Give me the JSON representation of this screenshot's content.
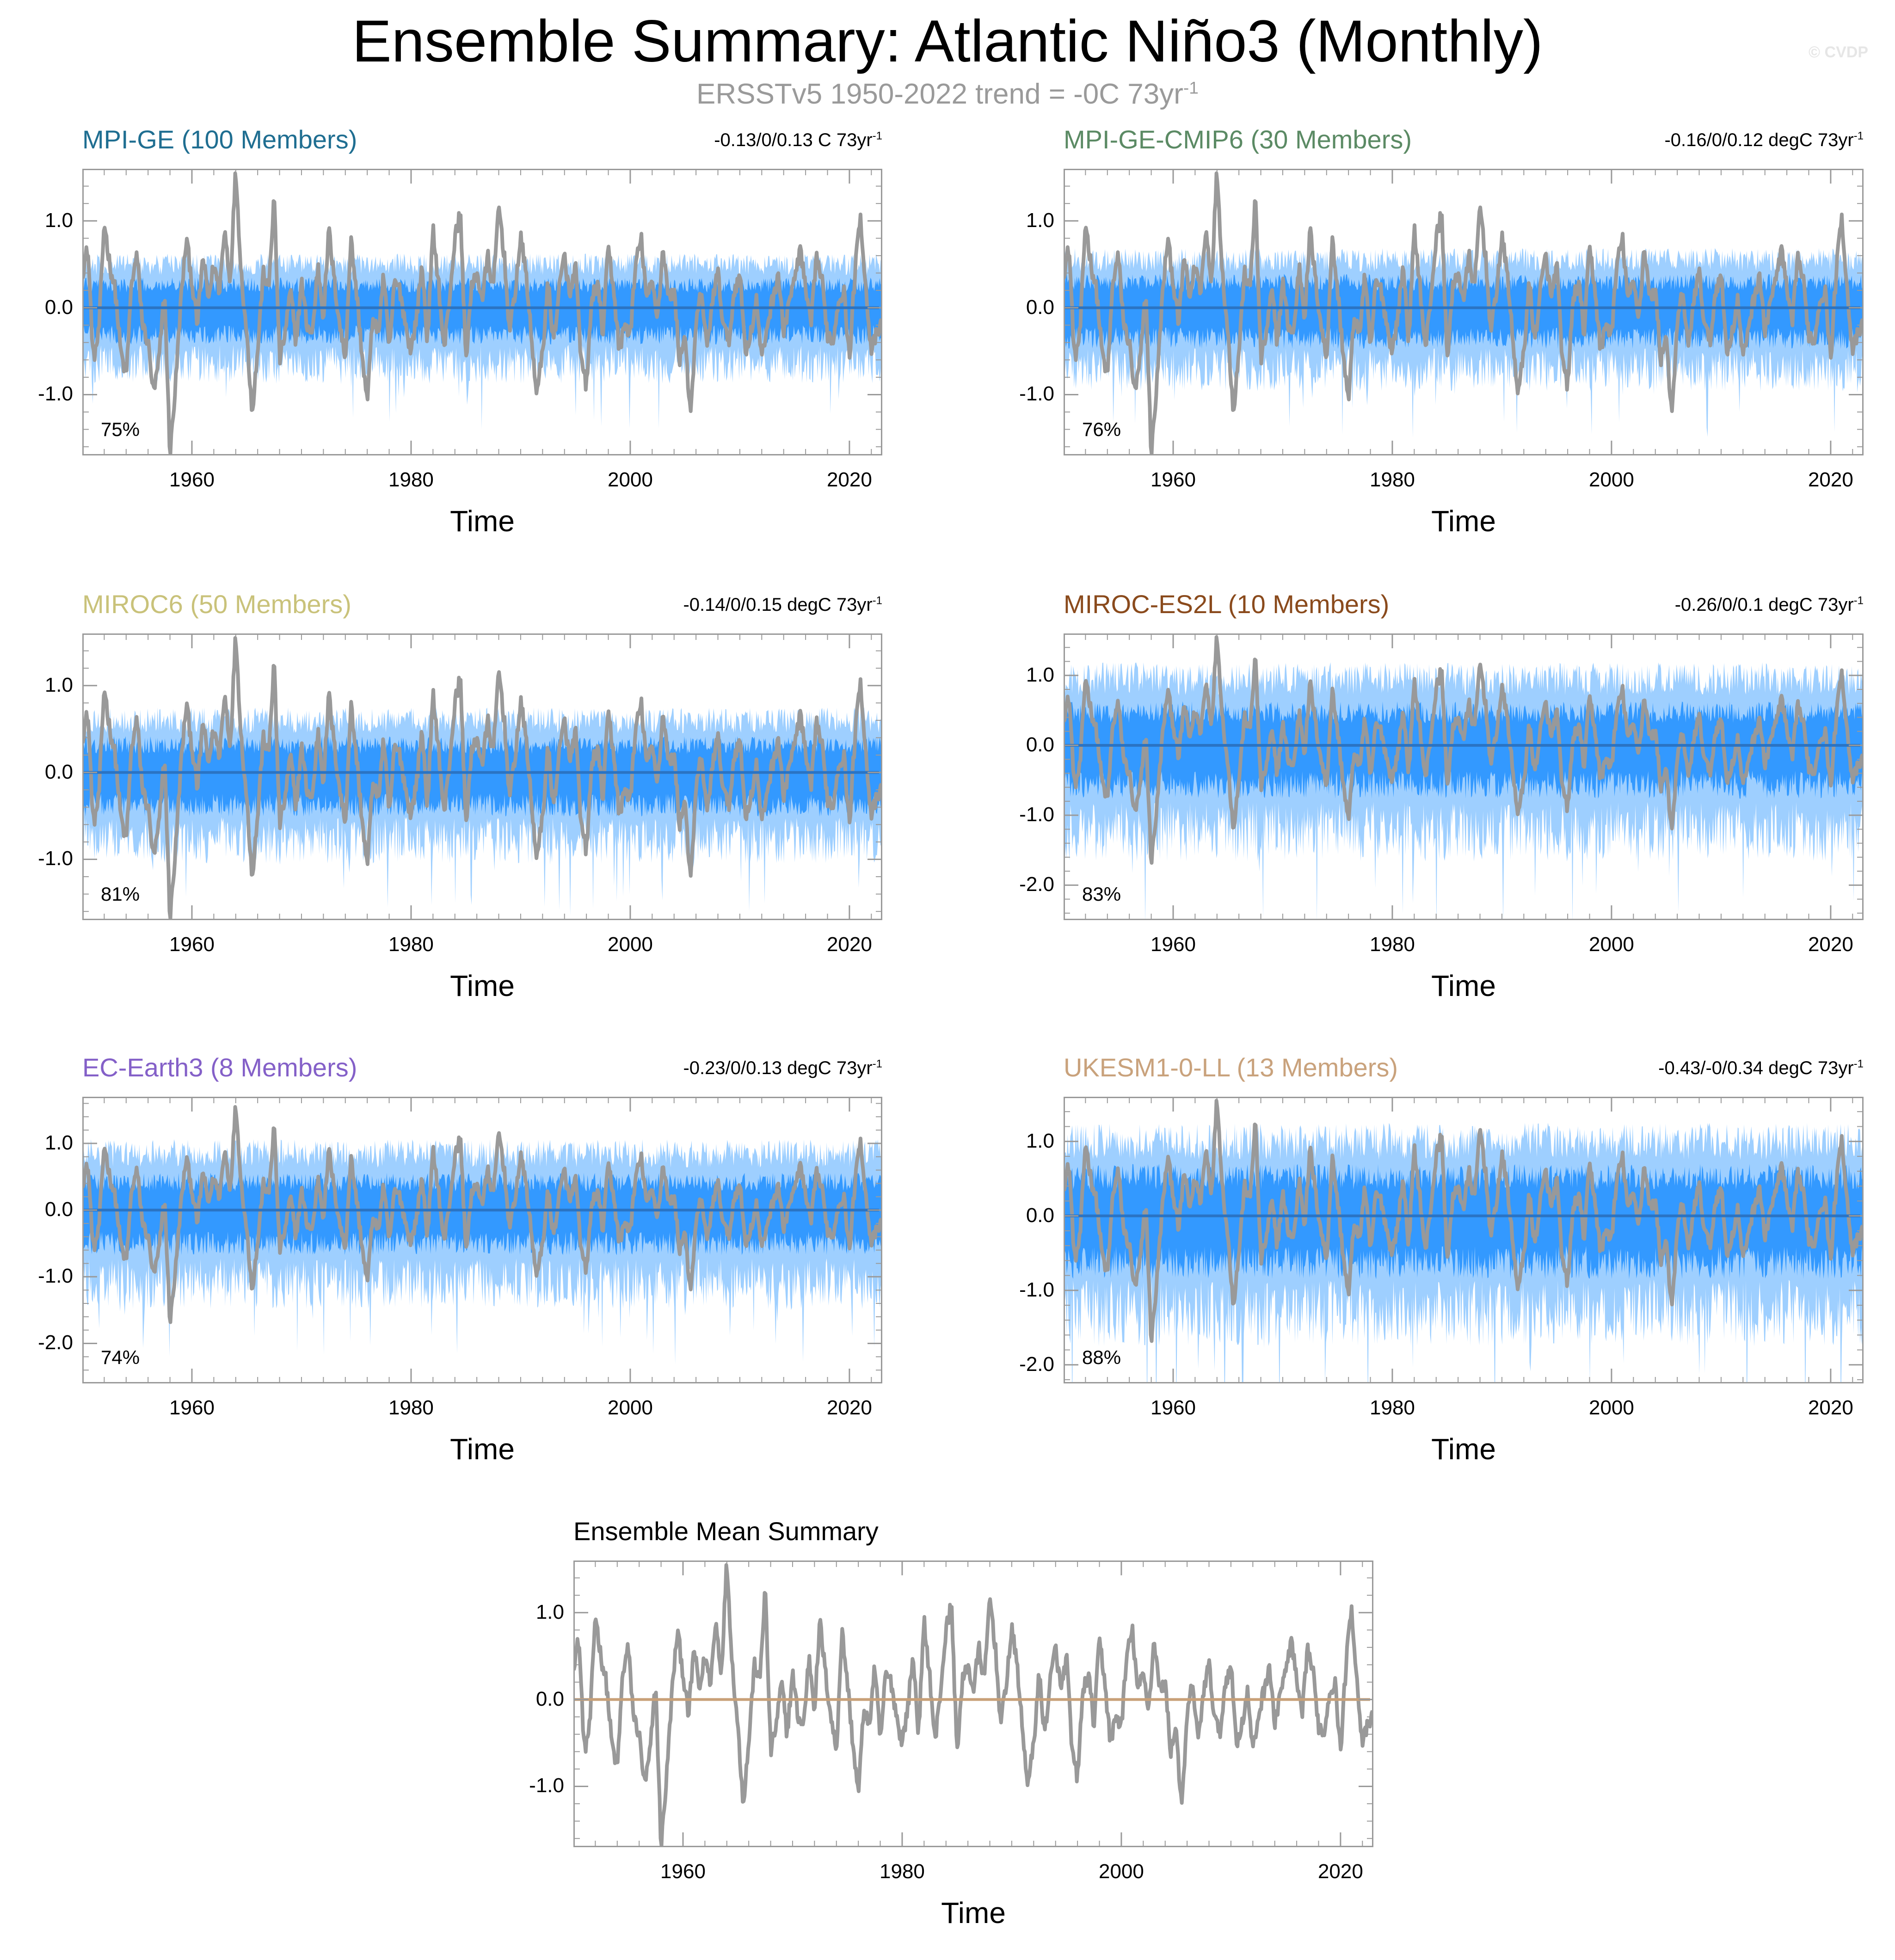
{
  "title": "Ensemble Summary: Atlantic Niño3 (Monthly)",
  "subtitle_main": "ERSSTv5 1950-2022 trend = -0C 73yr",
  "subtitle_sup": "-1",
  "watermark": "© CVDP",
  "colors": {
    "observed": "#999999",
    "band_outer": "#9ecfff",
    "band_inner": "#3399ff",
    "ensemble_mean_line": "#2a74c4",
    "mean_summary_line": "#c8a078",
    "frame": "#9a9a9a"
  },
  "chart_data": [
    {
      "type": "line",
      "title": "MPI-GE (100 Members)",
      "title_color": "#1f6e91",
      "range_label": "-0.13/0/0.13 C 73yr",
      "range_sup": "-1",
      "percent_label": "75%",
      "xlabel": "Time",
      "ylabel": "",
      "xlim": [
        1950,
        2023
      ],
      "ylim": [
        -1.7,
        1.6
      ],
      "yticks": [
        1.0,
        0.0,
        -1.0
      ],
      "ytick_labels": [
        "1.0",
        "0.0",
        "-1.0"
      ],
      "xticks": [
        1960,
        1980,
        2000,
        2020
      ],
      "xtick_labels": [
        "1960",
        "1980",
        "2000",
        "2020"
      ],
      "band_outer": 0.5,
      "band_inner": 0.25,
      "ensemble_mean": 0.0
    },
    {
      "type": "line",
      "title": "MPI-GE-CMIP6 (30 Members)",
      "title_color": "#5b8a64",
      "range_label": "-0.16/0/0.12 degC 73yr",
      "range_sup": "-1",
      "percent_label": "76%",
      "xlabel": "Time",
      "ylabel": "",
      "xlim": [
        1950,
        2023
      ],
      "ylim": [
        -1.7,
        1.6
      ],
      "yticks": [
        1.0,
        0.0,
        -1.0
      ],
      "ytick_labels": [
        "1.0",
        "0.0",
        "-1.0"
      ],
      "xticks": [
        1960,
        1980,
        2000,
        2020
      ],
      "xtick_labels": [
        "1960",
        "1980",
        "2000",
        "2020"
      ],
      "band_outer": 0.55,
      "band_inner": 0.28,
      "ensemble_mean": 0.0
    },
    {
      "type": "line",
      "title": "MIROC6 (50 Members)",
      "title_color": "#c9c27a",
      "range_label": "-0.14/0/0.15 degC 73yr",
      "range_sup": "-1",
      "percent_label": "81%",
      "xlabel": "Time",
      "ylabel": "",
      "xlim": [
        1950,
        2023
      ],
      "ylim": [
        -1.7,
        1.6
      ],
      "yticks": [
        1.0,
        0.0,
        -1.0
      ],
      "ytick_labels": [
        "1.0",
        "0.0",
        "-1.0"
      ],
      "xticks": [
        1960,
        1980,
        2000,
        2020
      ],
      "xtick_labels": [
        "1960",
        "1980",
        "2000",
        "2020"
      ],
      "band_outer": 0.6,
      "band_inner": 0.3,
      "ensemble_mean": 0.0
    },
    {
      "type": "line",
      "title": "MIROC-ES2L (10 Members)",
      "title_color": "#8a4a1c",
      "range_label": "-0.26/0/0.1 degC 73yr",
      "range_sup": "-1",
      "percent_label": "83%",
      "xlabel": "Time",
      "ylabel": "",
      "xlim": [
        1950,
        2023
      ],
      "ylim": [
        -2.5,
        1.6
      ],
      "yticks": [
        1.0,
        0.0,
        -1.0,
        -2.0
      ],
      "ytick_labels": [
        "1.0",
        "0.0",
        "-1.0",
        "-2.0"
      ],
      "xticks": [
        1960,
        1980,
        2000,
        2020
      ],
      "xtick_labels": [
        "1960",
        "1980",
        "2000",
        "2020"
      ],
      "band_outer": 0.95,
      "band_inner": 0.45,
      "ensemble_mean": 0.0
    },
    {
      "type": "line",
      "title": "EC-Earth3 (8 Members)",
      "title_color": "#8460c8",
      "range_label": "-0.23/0/0.13 degC 73yr",
      "range_sup": "-1",
      "percent_label": "74%",
      "xlabel": "Time",
      "ylabel": "",
      "xlim": [
        1950,
        2023
      ],
      "ylim": [
        -2.6,
        1.7
      ],
      "yticks": [
        1.0,
        0.0,
        -1.0,
        -2.0
      ],
      "ytick_labels": [
        "1.0",
        "0.0",
        "-1.0",
        "-2.0"
      ],
      "xticks": [
        1960,
        1980,
        2000,
        2020
      ],
      "xtick_labels": [
        "1960",
        "1980",
        "2000",
        "2020"
      ],
      "band_outer": 0.85,
      "band_inner": 0.4,
      "ensemble_mean": 0.0
    },
    {
      "type": "line",
      "title": "UKESM1-0-LL (13 Members)",
      "title_color": "#c9a27c",
      "range_label": "-0.43/-0/0.34 degC 73yr",
      "range_sup": "-1",
      "percent_label": "88%",
      "xlabel": "Time",
      "ylabel": "",
      "xlim": [
        1950,
        2023
      ],
      "ylim": [
        -2.25,
        1.6
      ],
      "yticks": [
        1.0,
        0.0,
        -1.0,
        -2.0
      ],
      "ytick_labels": [
        "1.0",
        "0.0",
        "-1.0",
        "-2.0"
      ],
      "xticks": [
        1960,
        1980,
        2000,
        2020
      ],
      "xtick_labels": [
        "1960",
        "1980",
        "2000",
        "2020"
      ],
      "band_outer": 1.0,
      "band_inner": 0.5,
      "ensemble_mean": 0.0
    },
    {
      "type": "line",
      "title": "Ensemble Mean Summary",
      "title_color": "#000000",
      "range_label": "",
      "range_sup": "",
      "percent_label": "",
      "xlabel": "Time",
      "ylabel": "",
      "xlim": [
        1950,
        2023
      ],
      "ylim": [
        -1.7,
        1.6
      ],
      "yticks": [
        1.0,
        0.0,
        -1.0
      ],
      "ytick_labels": [
        "1.0",
        "0.0",
        "-1.0"
      ],
      "xticks": [
        1960,
        1980,
        2000,
        2020
      ],
      "xtick_labels": [
        "1960",
        "1980",
        "2000",
        "2020"
      ],
      "band_outer": 0,
      "band_inner": 0,
      "ensemble_mean": 0.0
    }
  ],
  "observed_series": {
    "name": "ERSSTv5",
    "x_start": 1950.04,
    "x_step": 0.0833,
    "anchor_years": [
      1950.0,
      1950.5,
      1951.0,
      1951.5,
      1952.0,
      1952.5,
      1953.0,
      1953.5,
      1954.0,
      1954.5,
      1955.0,
      1955.5,
      1956.0,
      1956.5,
      1957.0,
      1957.5,
      1958.0,
      1958.5,
      1959.0,
      1959.5,
      1960.0,
      1960.5,
      1961.0,
      1961.5,
      1962.0,
      1962.5,
      1963.0,
      1963.5,
      1964.0,
      1964.5,
      1965.0,
      1965.5,
      1966.0,
      1966.5,
      1967.0,
      1967.5,
      1968.0,
      1968.5,
      1969.0,
      1969.5,
      1970.0,
      1970.5,
      1971.0,
      1971.5,
      1972.0,
      1972.5,
      1973.0,
      1973.5,
      1974.0,
      1974.5,
      1975.0,
      1975.5,
      1976.0,
      1976.5,
      1977.0,
      1977.5,
      1978.0,
      1978.5,
      1979.0,
      1979.5,
      1980.0,
      1980.5,
      1981.0,
      1981.5,
      1982.0,
      1982.5,
      1983.0,
      1983.5,
      1984.0,
      1984.5,
      1985.0,
      1985.5,
      1986.0,
      1986.5,
      1987.0,
      1987.5,
      1988.0,
      1988.5,
      1989.0,
      1989.5,
      1990.0,
      1990.5,
      1991.0,
      1991.5,
      1992.0,
      1992.5,
      1993.0,
      1993.5,
      1994.0,
      1994.5,
      1995.0,
      1995.5,
      1996.0,
      1996.5,
      1997.0,
      1997.5,
      1998.0,
      1998.5,
      1999.0,
      1999.5,
      2000.0,
      2000.5,
      2001.0,
      2001.5,
      2002.0,
      2002.5,
      2003.0,
      2003.5,
      2004.0,
      2004.5,
      2005.0,
      2005.5,
      2006.0,
      2006.5,
      2007.0,
      2007.5,
      2008.0,
      2008.5,
      2009.0,
      2009.5,
      2010.0,
      2010.5,
      2011.0,
      2011.5,
      2012.0,
      2012.5,
      2013.0,
      2013.5,
      2014.0,
      2014.5,
      2015.0,
      2015.5,
      2016.0,
      2016.5,
      2017.0,
      2017.5,
      2018.0,
      2018.5,
      2019.0,
      2019.5,
      2020.0,
      2020.5,
      2021.0,
      2021.5,
      2022.0,
      2022.5,
      2023.0
    ],
    "anchor_values": [
      0.4,
      0.7,
      -0.6,
      -0.3,
      1.0,
      0.5,
      0.2,
      -0.5,
      -0.8,
      0.3,
      0.6,
      -0.2,
      -0.4,
      -1.0,
      -0.6,
      0.2,
      -1.7,
      -0.9,
      0.1,
      0.8,
      0.3,
      -0.2,
      0.6,
      0.1,
      0.5,
      0.2,
      0.9,
      0.3,
      1.6,
      0.4,
      -0.3,
      -1.2,
      -0.5,
      0.4,
      0.2,
      1.3,
      -0.6,
      -0.3,
      0.2,
      -0.4,
      0.3,
      -0.2,
      -0.3,
      0.5,
      -0.1,
      0.9,
      0.3,
      -0.2,
      -0.6,
      0.8,
      0.2,
      -0.5,
      -1.1,
      -0.1,
      -0.3,
      0.4,
      -0.5,
      0.3,
      0.2,
      -0.2,
      -0.5,
      -0.1,
      0.5,
      -0.4,
      0.9,
      0.3,
      -0.5,
      0.1,
      0.8,
      1.1,
      -0.6,
      0.2,
      0.4,
      0.1,
      0.6,
      0.2,
      1.2,
      0.6,
      -0.3,
      0.2,
      0.8,
      0.4,
      -0.4,
      -1.0,
      -0.5,
      0.3,
      -0.4,
      0.2,
      0.6,
      0.1,
      0.5,
      -0.6,
      -0.9,
      0.1,
      0.3,
      -0.3,
      0.7,
      0.2,
      -0.5,
      -0.2,
      -0.3,
      0.5,
      0.8,
      0.1,
      0.3,
      -0.1,
      0.7,
      0.1,
      0.2,
      -0.6,
      -0.3,
      -1.3,
      -0.2,
      0.2,
      -0.5,
      0.1,
      0.4,
      -0.2,
      -0.4,
      0.2,
      0.4,
      -0.5,
      -0.3,
      0.1,
      -0.6,
      -0.2,
      0.1,
      0.4,
      -0.3,
      0.1,
      0.3,
      0.7,
      0.2,
      -0.2,
      0.6,
      0.3,
      -0.3,
      -0.4,
      0.1,
      0.2,
      -0.6,
      0.4,
      1.1,
      0.2,
      -0.5,
      -0.3,
      -0.2
    ]
  }
}
